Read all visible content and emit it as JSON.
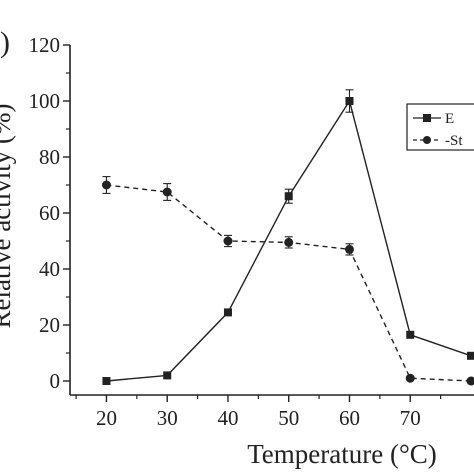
{
  "panel_label": ")",
  "colors": {
    "ink": "#222222",
    "background": "#ffffff"
  },
  "chart_data": {
    "type": "line",
    "title": "",
    "xlabel": "Temperature (°C)",
    "ylabel": "Relative activity (%)",
    "xlim": [
      14,
      80
    ],
    "ylim": [
      -5,
      120
    ],
    "xticks": [
      20,
      30,
      40,
      50,
      60,
      70
    ],
    "yticks": [
      0,
      20,
      40,
      60,
      80,
      100,
      120
    ],
    "x": [
      20,
      30,
      40,
      50,
      60,
      70,
      80
    ],
    "grid": false,
    "legend_position": "top-right",
    "series": [
      {
        "name": "E",
        "style": "solid",
        "marker": "square",
        "values": [
          0,
          2,
          24.5,
          66,
          100,
          16.5,
          9
        ],
        "errors": [
          0,
          0,
          0,
          2.5,
          4,
          0,
          0
        ]
      },
      {
        "name": "-St",
        "style": "dashed",
        "marker": "circle",
        "values": [
          70,
          67.5,
          50,
          49.5,
          47,
          1,
          0
        ],
        "errors": [
          3,
          3,
          2,
          2,
          2,
          0,
          0
        ]
      }
    ]
  }
}
